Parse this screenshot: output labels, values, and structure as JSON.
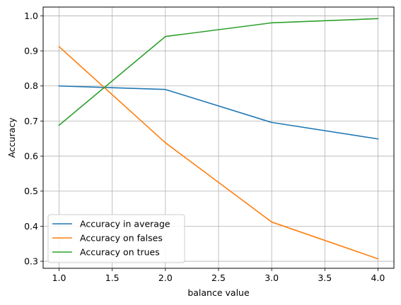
{
  "chart_data": {
    "type": "line",
    "xlabel": "balance value",
    "ylabel": "Accuracy",
    "x": [
      1.0,
      2.0,
      3.0,
      4.0
    ],
    "xlim": [
      0.85,
      4.15
    ],
    "ylim": [
      0.28,
      1.025
    ],
    "xticks": [
      "1.0",
      "1.5",
      "2.0",
      "2.5",
      "3.0",
      "3.5",
      "4.0"
    ],
    "yticks": [
      "0.3",
      "0.4",
      "0.5",
      "0.6",
      "0.7",
      "0.8",
      "0.9",
      "1.0"
    ],
    "grid": true,
    "legend_position": "lower-left",
    "series": [
      {
        "name": "Accuracy in average",
        "color": "#1f77b4",
        "values": [
          0.8,
          0.79,
          0.696,
          0.649
        ]
      },
      {
        "name": "Accuracy on falses",
        "color": "#ff7f0e",
        "values": [
          0.912,
          0.638,
          0.412,
          0.307
        ]
      },
      {
        "name": "Accuracy on trues",
        "color": "#2ca02c",
        "values": [
          0.688,
          0.941,
          0.98,
          0.992
        ]
      }
    ]
  }
}
